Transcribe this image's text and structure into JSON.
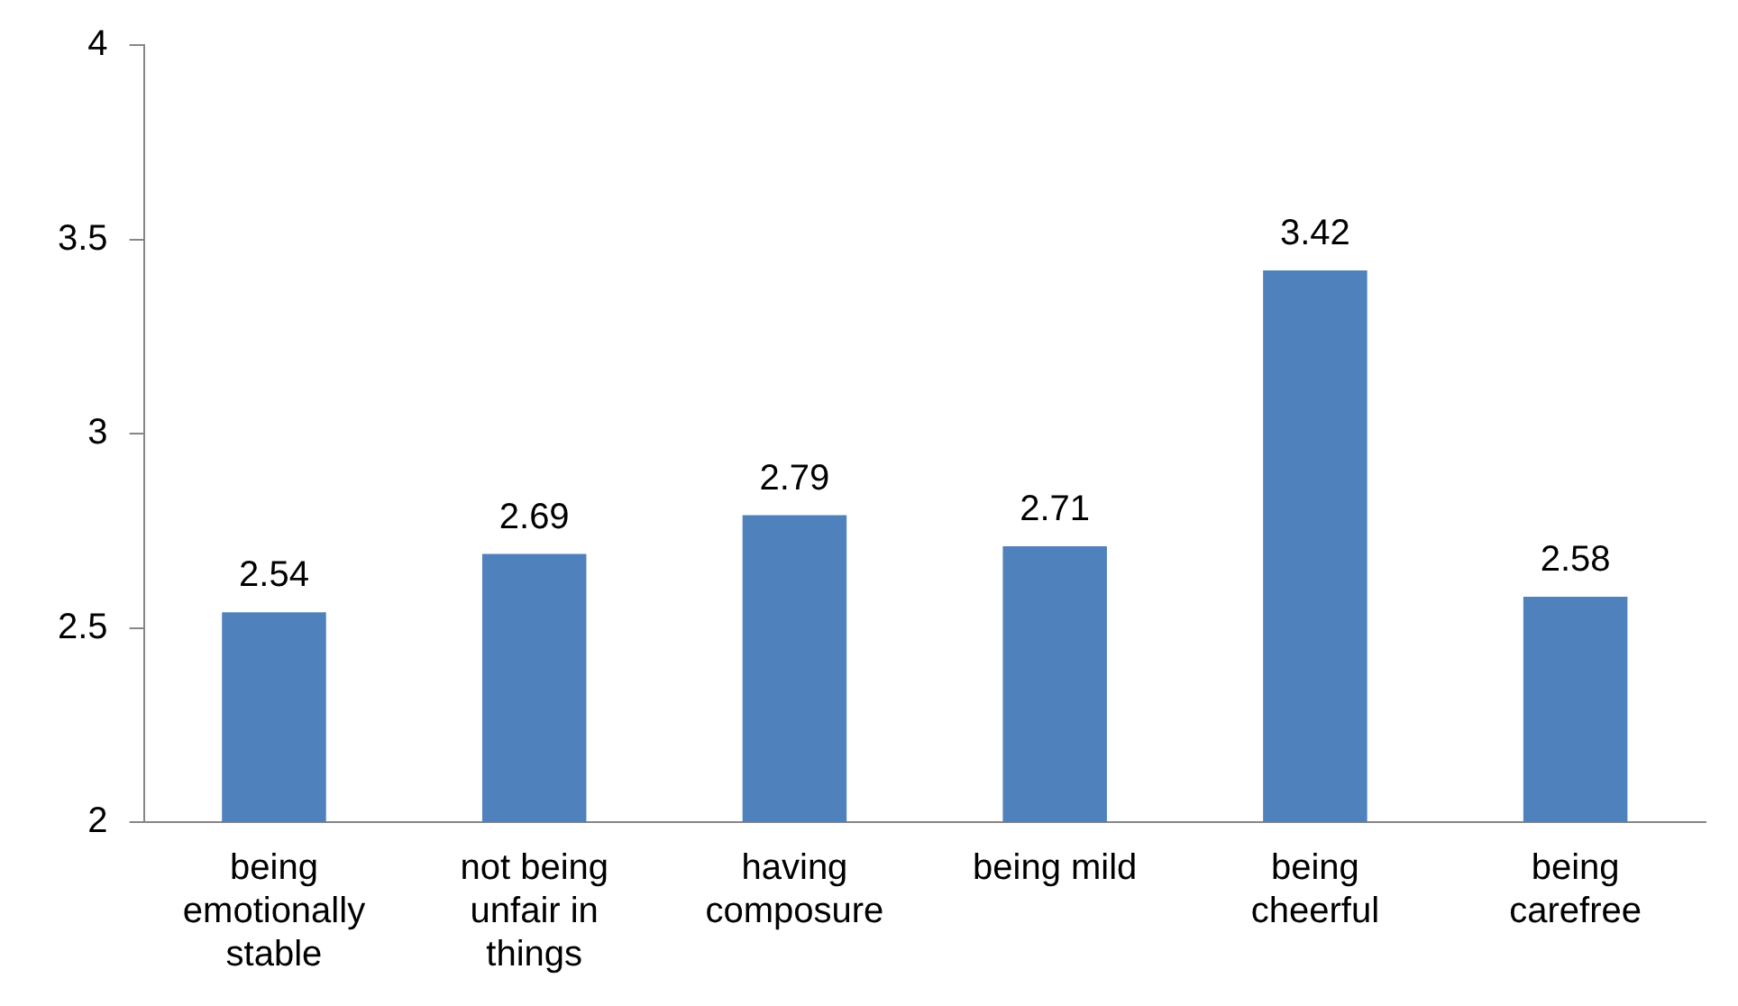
{
  "chart_data": {
    "type": "bar",
    "categories": [
      "being emotionally stable",
      "not being unfair in things",
      "having composure",
      "being mild",
      "being cheerful",
      "being carefree"
    ],
    "values": [
      2.54,
      2.69,
      2.79,
      2.71,
      3.42,
      2.58
    ],
    "color": "#4f81bd",
    "ylim": [
      2,
      4
    ],
    "yticks": [
      2,
      2.5,
      3,
      3.5,
      4
    ],
    "grid": false,
    "legend": false,
    "data_labels": true
  }
}
